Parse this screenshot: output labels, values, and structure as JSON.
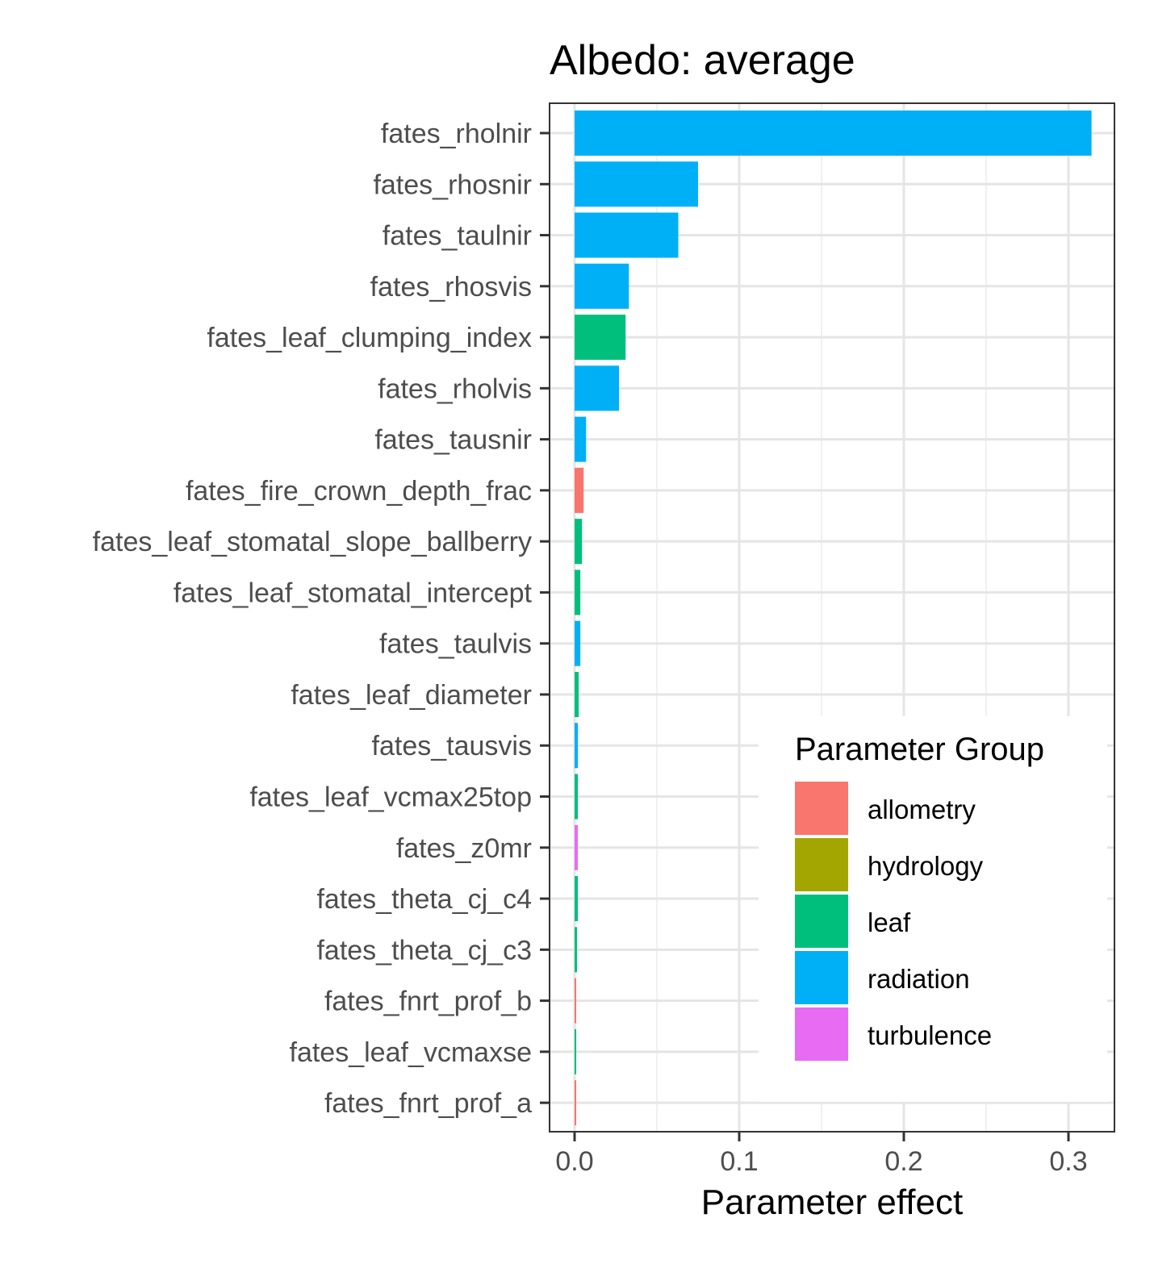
{
  "chart_data": {
    "type": "bar",
    "orientation": "horizontal",
    "title": "Albedo: average",
    "xlabel": "Parameter effect",
    "ylabel": "",
    "xlim": [
      -0.015,
      0.328
    ],
    "xticks": [
      0.0,
      0.1,
      0.2,
      0.3
    ],
    "xtick_labels": [
      "0.0",
      "0.1",
      "0.2",
      "0.3"
    ],
    "grid": true,
    "legend": {
      "title": "Parameter Group",
      "position": "bottom-right",
      "items": [
        {
          "name": "allometry",
          "color": "#F8766D"
        },
        {
          "name": "hydrology",
          "color": "#A3A500"
        },
        {
          "name": "leaf",
          "color": "#00BF7D"
        },
        {
          "name": "radiation",
          "color": "#00B0F6"
        },
        {
          "name": "turbulence",
          "color": "#E76BF3"
        }
      ]
    },
    "bars": [
      {
        "category": "fates_rholnir",
        "value": 0.314,
        "group": "radiation"
      },
      {
        "category": "fates_rhosnir",
        "value": 0.075,
        "group": "radiation"
      },
      {
        "category": "fates_taulnir",
        "value": 0.063,
        "group": "radiation"
      },
      {
        "category": "fates_rhosvis",
        "value": 0.033,
        "group": "radiation"
      },
      {
        "category": "fates_leaf_clumping_index",
        "value": 0.031,
        "group": "leaf"
      },
      {
        "category": "fates_rholvis",
        "value": 0.027,
        "group": "radiation"
      },
      {
        "category": "fates_tausnir",
        "value": 0.007,
        "group": "radiation"
      },
      {
        "category": "fates_fire_crown_depth_frac",
        "value": 0.0055,
        "group": "allometry"
      },
      {
        "category": "fates_leaf_stomatal_slope_ballberry",
        "value": 0.0045,
        "group": "leaf"
      },
      {
        "category": "fates_leaf_stomatal_intercept",
        "value": 0.0035,
        "group": "leaf"
      },
      {
        "category": "fates_taulvis",
        "value": 0.0035,
        "group": "radiation"
      },
      {
        "category": "fates_leaf_diameter",
        "value": 0.0025,
        "group": "leaf"
      },
      {
        "category": "fates_tausvis",
        "value": 0.002,
        "group": "radiation"
      },
      {
        "category": "fates_leaf_vcmax25top",
        "value": 0.002,
        "group": "leaf"
      },
      {
        "category": "fates_z0mr",
        "value": 0.002,
        "group": "turbulence"
      },
      {
        "category": "fates_theta_cj_c4",
        "value": 0.002,
        "group": "leaf"
      },
      {
        "category": "fates_theta_cj_c3",
        "value": 0.0015,
        "group": "leaf"
      },
      {
        "category": "fates_fnrt_prof_b",
        "value": 0.001,
        "group": "allometry"
      },
      {
        "category": "fates_leaf_vcmaxse",
        "value": 0.001,
        "group": "leaf"
      },
      {
        "category": "fates_fnrt_prof_a",
        "value": 0.001,
        "group": "allometry"
      }
    ]
  }
}
